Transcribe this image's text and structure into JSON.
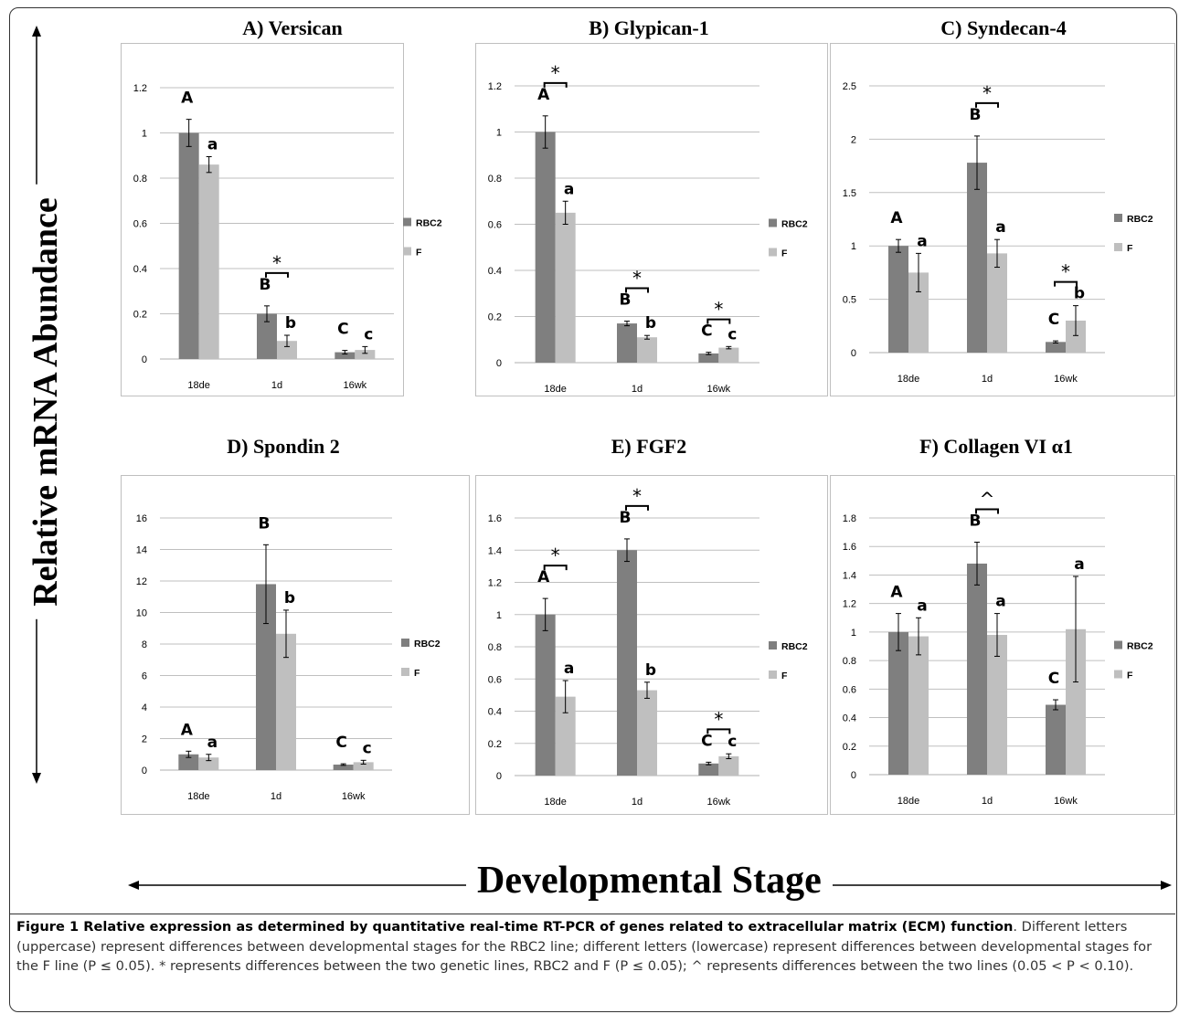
{
  "axis_titles": {
    "y": "Relative mRNA Abundance",
    "x": "Developmental Stage"
  },
  "legend": {
    "rbc2": "RBC2",
    "f": "F"
  },
  "colors": {
    "rbc2": "#7f7f7f",
    "f": "#bfbfbf",
    "grid": "#bfbfbf"
  },
  "chart_data": [
    {
      "type": "bar",
      "title": "A) Versican",
      "categories": [
        "18de",
        "1d",
        "16wk"
      ],
      "ylim": [
        0,
        1.2
      ],
      "yticks": [
        "0",
        "0.2",
        "0.4",
        "0.6",
        "0.8",
        "1",
        "1.2"
      ],
      "series": [
        {
          "name": "RBC2",
          "values": [
            1.0,
            0.2,
            0.03
          ],
          "errors": [
            0.06,
            0.035,
            0.008
          ],
          "labels": [
            "A",
            "B",
            "C"
          ]
        },
        {
          "name": "F",
          "values": [
            0.86,
            0.08,
            0.04
          ],
          "errors": [
            0.035,
            0.025,
            0.015
          ],
          "labels": [
            "a",
            "b",
            "c"
          ]
        }
      ],
      "significance": [
        {
          "category": "1d",
          "mark": "*"
        }
      ]
    },
    {
      "type": "bar",
      "title": "B) Glypican-1",
      "categories": [
        "18de",
        "1d",
        "16wk"
      ],
      "ylim": [
        0,
        1.2
      ],
      "yticks": [
        "0",
        "0.2",
        "0.4",
        "0.6",
        "0.8",
        "1",
        "1.2"
      ],
      "series": [
        {
          "name": "RBC2",
          "values": [
            1.0,
            0.17,
            0.04
          ],
          "errors": [
            0.07,
            0.01,
            0.005
          ],
          "labels": [
            "A",
            "B",
            "C"
          ]
        },
        {
          "name": "F",
          "values": [
            0.65,
            0.11,
            0.065
          ],
          "errors": [
            0.05,
            0.008,
            0.005
          ],
          "labels": [
            "a",
            "b",
            "c"
          ]
        }
      ],
      "significance": [
        {
          "category": "18de",
          "mark": "*"
        },
        {
          "category": "1d",
          "mark": "*"
        },
        {
          "category": "16wk",
          "mark": "*"
        }
      ]
    },
    {
      "type": "bar",
      "title": "C) Syndecan-4",
      "categories": [
        "18de",
        "1d",
        "16wk"
      ],
      "ylim": [
        0,
        2.5
      ],
      "yticks": [
        "0",
        "0.5",
        "1",
        "1.5",
        "2",
        "2.5"
      ],
      "series": [
        {
          "name": "RBC2",
          "values": [
            1.0,
            1.78,
            0.1
          ],
          "errors": [
            0.06,
            0.25,
            0.01
          ],
          "labels": [
            "A",
            "B",
            "C"
          ]
        },
        {
          "name": "F",
          "values": [
            0.75,
            0.93,
            0.3
          ],
          "errors": [
            0.18,
            0.13,
            0.14
          ],
          "labels": [
            "a",
            "a",
            "b"
          ]
        }
      ],
      "significance": [
        {
          "category": "1d",
          "mark": "*"
        },
        {
          "category": "16wk",
          "mark": "*"
        }
      ]
    },
    {
      "type": "bar",
      "title": "D) Spondin 2",
      "categories": [
        "18de",
        "1d",
        "16wk"
      ],
      "ylim": [
        0,
        16
      ],
      "yticks": [
        "0",
        "2",
        "4",
        "6",
        "8",
        "10",
        "12",
        "14",
        "16"
      ],
      "series": [
        {
          "name": "RBC2",
          "values": [
            1.0,
            11.8,
            0.35
          ],
          "errors": [
            0.2,
            2.5,
            0.05
          ],
          "labels": [
            "A",
            "B",
            "C"
          ]
        },
        {
          "name": "F",
          "values": [
            0.8,
            8.65,
            0.5
          ],
          "errors": [
            0.2,
            1.5,
            0.12
          ],
          "labels": [
            "a",
            "b",
            "c"
          ]
        }
      ],
      "significance": []
    },
    {
      "type": "bar",
      "title": "E) FGF2",
      "categories": [
        "18de",
        "1d",
        "16wk"
      ],
      "ylim": [
        0,
        1.6
      ],
      "yticks": [
        "0",
        "0.2",
        "0.4",
        "0.6",
        "0.8",
        "1",
        "1.2",
        "1.4",
        "1.6"
      ],
      "series": [
        {
          "name": "RBC2",
          "values": [
            1.0,
            1.4,
            0.075
          ],
          "errors": [
            0.1,
            0.07,
            0.008
          ],
          "labels": [
            "A",
            "B",
            "C"
          ]
        },
        {
          "name": "F",
          "values": [
            0.49,
            0.53,
            0.12
          ],
          "errors": [
            0.1,
            0.05,
            0.015
          ],
          "labels": [
            "a",
            "b",
            "c"
          ]
        }
      ],
      "significance": [
        {
          "category": "18de",
          "mark": "*"
        },
        {
          "category": "1d",
          "mark": "*"
        },
        {
          "category": "16wk",
          "mark": "*"
        }
      ]
    },
    {
      "type": "bar",
      "title": "F) Collagen VI α1",
      "categories": [
        "18de",
        "1d",
        "16wk"
      ],
      "ylim": [
        0,
        1.8
      ],
      "yticks": [
        "0",
        "0.2",
        "0.4",
        "0.6",
        "0.8",
        "1",
        "1.2",
        "1.4",
        "1.6",
        "1.8"
      ],
      "series": [
        {
          "name": "RBC2",
          "values": [
            1.0,
            1.48,
            0.49
          ],
          "errors": [
            0.13,
            0.15,
            0.035
          ],
          "labels": [
            "A",
            "B",
            "C"
          ]
        },
        {
          "name": "F",
          "values": [
            0.97,
            0.98,
            1.02
          ],
          "errors": [
            0.13,
            0.15,
            0.37
          ],
          "labels": [
            "a",
            "a",
            "a"
          ]
        }
      ],
      "significance": [
        {
          "category": "1d",
          "mark": "^"
        }
      ]
    }
  ],
  "caption": {
    "label": "Figure 1 Relative expression as determined by quantitative real-time RT-PCR of genes related to extracellular matrix (ECM) function",
    "text": ". Different letters (uppercase) represent differences between developmental stages for the RBC2 line; different letters (lowercase) represent differences between developmental stages for the F line (P ≤ 0.05). * represents differences between the two genetic lines, RBC2 and F (P ≤ 0.05); ^ represents differences between the two lines (0.05 < P < 0.10)."
  }
}
